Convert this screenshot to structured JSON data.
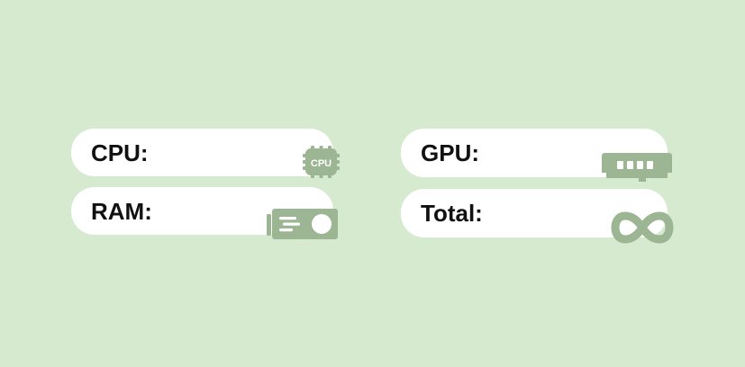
{
  "widgets": {
    "cpu": {
      "label": "CPU:",
      "icon": "cpu-chip-icon",
      "icon_text": "CPU"
    },
    "ram": {
      "label": "RAM:",
      "icon": "graphics-card-icon"
    },
    "gpu": {
      "label": "GPU:",
      "icon": "memory-module-icon"
    },
    "total": {
      "label": "Total:",
      "icon": "infinity-icon"
    }
  },
  "colors": {
    "background": "#d6ead0",
    "card": "#ffffff",
    "icon": "#9cb593",
    "text": "#111111"
  }
}
